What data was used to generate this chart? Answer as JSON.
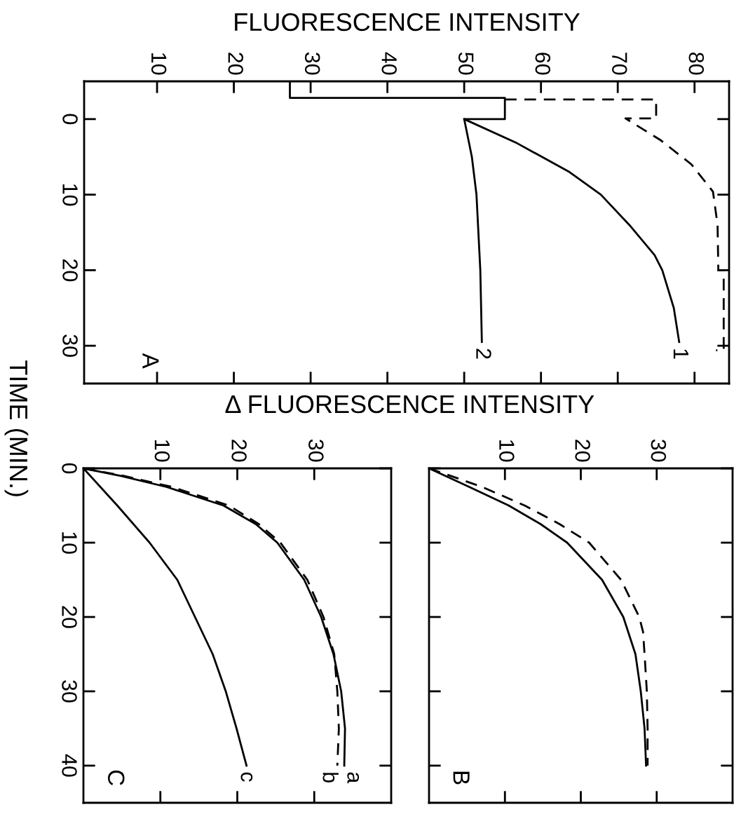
{
  "chart_data": [
    {
      "type": "line",
      "xlabel": "FLUORESCENCE INTENSITY",
      "ylabel": "TIME (MIN.)",
      "xlim": [
        0.5,
        84.5
      ],
      "xticks": [
        10,
        20,
        30,
        40,
        50,
        60,
        70,
        80
      ],
      "ylim": [
        35,
        -5
      ],
      "yticks": [
        0,
        10,
        20,
        30
      ],
      "series": [
        {
          "name": "1",
          "color": "#000000",
          "line_style": "solid",
          "x": [
            27.3,
            27.3,
            55.3,
            55.3,
            50,
            56.9,
            63.7,
            67.8,
            71.5,
            74.8,
            75.8,
            77.3,
            78
          ],
          "values": [
            -5,
            -2.8,
            -2.8,
            0,
            0,
            3.2,
            7,
            10,
            14,
            18,
            20,
            25,
            29.5
          ]
        },
        {
          "name": "2",
          "color": "#000000",
          "line_style": "solid",
          "x": [
            50,
            51,
            51.6,
            52.1,
            52.3
          ],
          "values": [
            0,
            5,
            10,
            20,
            29.5
          ]
        },
        {
          "color": "#000000",
          "line_style": "dashed",
          "x": [
            55.3,
            75,
            75,
            71,
            75.6,
            79.6,
            82.4,
            83,
            83.1,
            83.8,
            83.8,
            82.8
          ],
          "values": [
            -2.6,
            -2.6,
            -0.1,
            -0.1,
            2.8,
            6,
            9.6,
            14,
            20,
            20,
            30.6,
            30.6
          ]
        }
      ],
      "annotations": [
        "A"
      ]
    },
    {
      "type": "line",
      "xlabel": "Δ FLUORESCENCE INTENSITY",
      "xlim": [
        0,
        40
      ],
      "xticks": [
        10,
        20,
        30
      ],
      "ylim": [
        45,
        0
      ],
      "yticks": [
        0,
        10,
        20,
        30,
        40
      ],
      "series": [
        {
          "name": "c",
          "color": "#000000",
          "line_style": "solid",
          "x": [
            0,
            4.4,
            8.6,
            12.2,
            14.5,
            16.8,
            18.5,
            19.9,
            21.2
          ],
          "values": [
            0,
            5,
            10,
            15,
            20,
            25,
            30,
            35,
            40
          ]
        },
        {
          "name": "a",
          "color": "#000000",
          "line_style": "solid",
          "x": [
            0,
            4.8,
            10.8,
            18.2,
            22.4,
            25.2,
            28.7,
            30.9,
            32.5,
            33.5,
            34.0,
            33.9
          ],
          "values": [
            0,
            1,
            2.5,
            5,
            7.5,
            10,
            15,
            20,
            25,
            30,
            35,
            40
          ]
        },
        {
          "name": "b",
          "color": "#000000",
          "line_style": "dashed",
          "x": [
            0,
            5.2,
            11.5,
            18.9,
            22.8,
            25.6,
            29.1,
            31.2,
            32.6,
            33.0,
            33.2,
            33.0
          ],
          "values": [
            0,
            1,
            2.5,
            5,
            7.5,
            10,
            15,
            20,
            25,
            30,
            35,
            40
          ]
        }
      ],
      "annotations": [
        "C"
      ]
    },
    {
      "type": "line",
      "xlim": [
        0,
        40
      ],
      "xticks": [
        10,
        20,
        30
      ],
      "ylim": [
        45,
        0
      ],
      "yticks": [
        0,
        10,
        20,
        30,
        40
      ],
      "tick_labels": "x",
      "series": [
        {
          "color": "#000000",
          "line_style": "solid",
          "x": [
            0,
            5.3,
            10.5,
            14.7,
            18.2,
            22.8,
            25.6,
            27.2,
            27.9,
            28.4,
            28.6
          ],
          "values": [
            0,
            2.5,
            5,
            7.5,
            10,
            15,
            20,
            25,
            30,
            35,
            40
          ]
        },
        {
          "color": "#000000",
          "line_style": "dashed",
          "x": [
            0,
            7.0,
            12.6,
            17.2,
            21.1,
            25.3,
            27.7,
            28.2,
            28.4,
            28.7,
            28.8,
            28.8
          ],
          "values": [
            0,
            2.5,
            5,
            7.5,
            10,
            15,
            20,
            22,
            25,
            30,
            35,
            40
          ]
        }
      ],
      "annotations": [
        "B"
      ]
    }
  ]
}
